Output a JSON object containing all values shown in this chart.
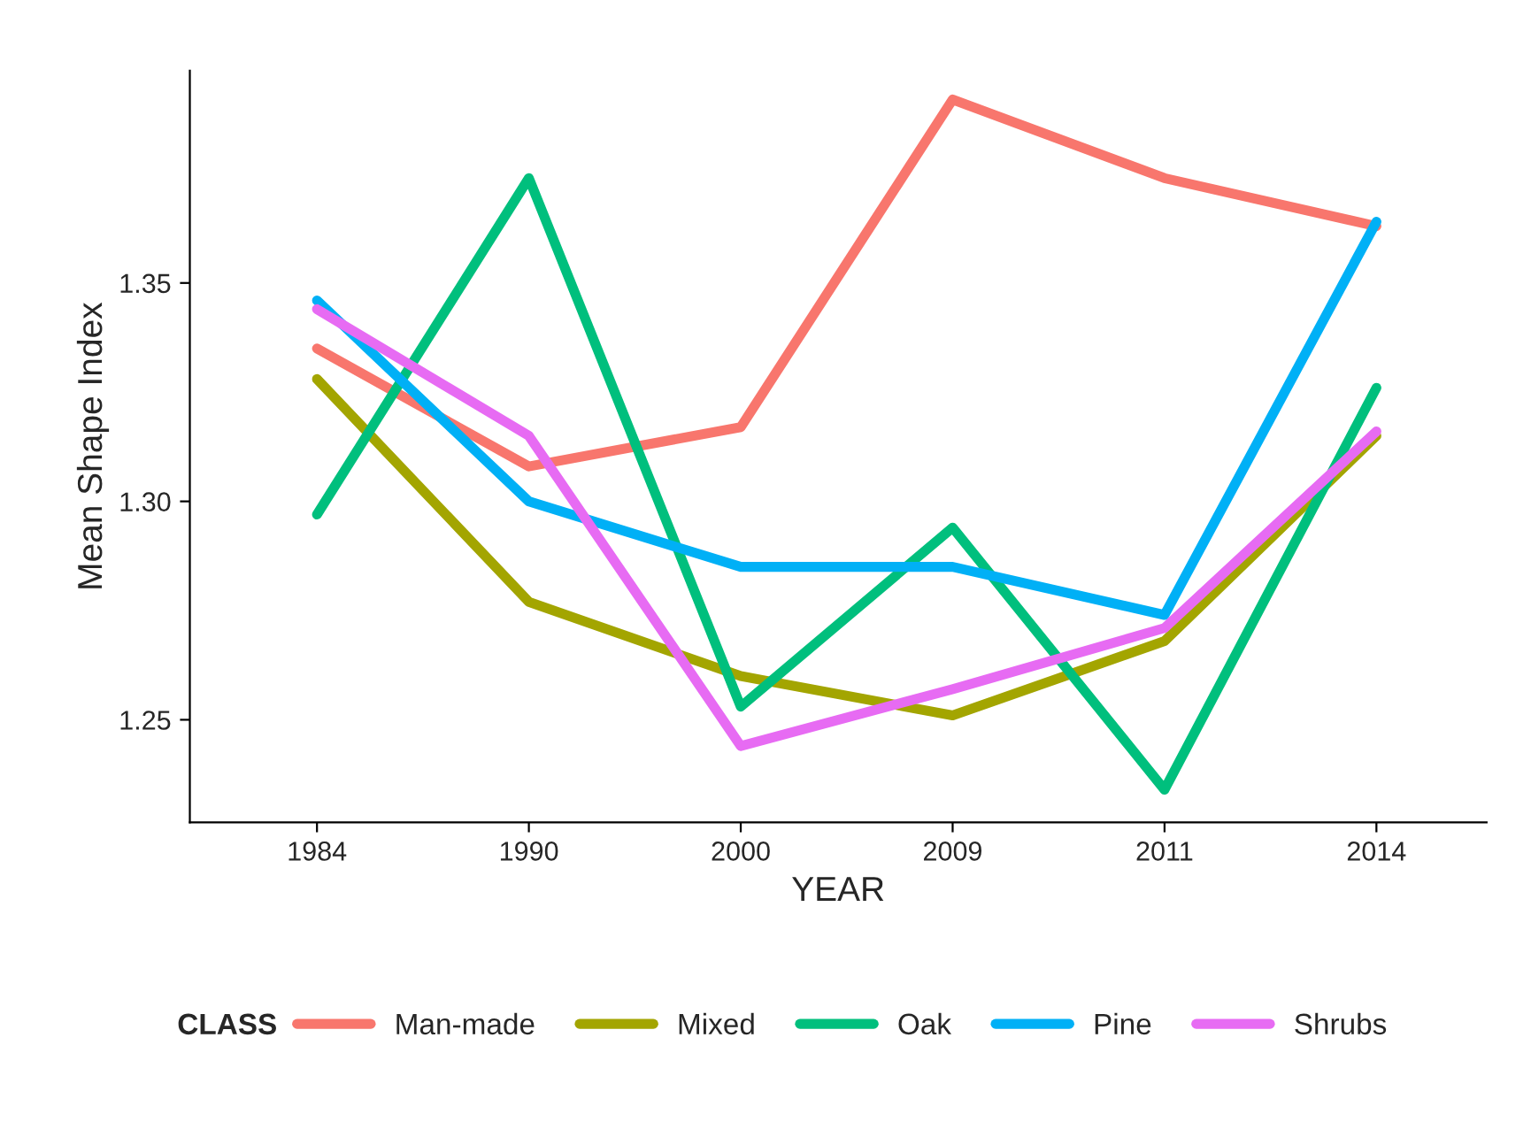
{
  "chart_data": {
    "type": "line",
    "xlabel": "YEAR",
    "ylabel": "Mean Shape Index",
    "legend_title": "CLASS",
    "legend": "bottom",
    "grid": false,
    "marker": "none",
    "line_style": "solid",
    "categories": [
      "1984",
      "1990",
      "2000",
      "2009",
      "2011",
      "2014"
    ],
    "ylim": [
      1.2265,
      1.3986
    ],
    "yticks": [
      {
        "value": 1.25,
        "label": "1.25"
      },
      {
        "value": 1.3,
        "label": "1.30"
      },
      {
        "value": 1.35,
        "label": "1.35"
      }
    ],
    "series": [
      {
        "name": "Man-made",
        "color": "#f8766d",
        "values": [
          1.335,
          1.308,
          1.317,
          1.392,
          1.374,
          1.363
        ]
      },
      {
        "name": "Mixed",
        "color": "#a3a500",
        "values": [
          1.328,
          1.277,
          1.26,
          1.251,
          1.268,
          1.315
        ]
      },
      {
        "name": "Oak",
        "color": "#00bf7d",
        "values": [
          1.297,
          1.374,
          1.253,
          1.294,
          1.234,
          1.326
        ]
      },
      {
        "name": "Pine",
        "color": "#00b0f6",
        "values": [
          1.346,
          1.3,
          1.285,
          1.285,
          1.274,
          1.364
        ]
      },
      {
        "name": "Shrubs",
        "color": "#e76bf3",
        "values": [
          1.344,
          1.315,
          1.244,
          1.257,
          1.271,
          1.316
        ]
      }
    ]
  }
}
